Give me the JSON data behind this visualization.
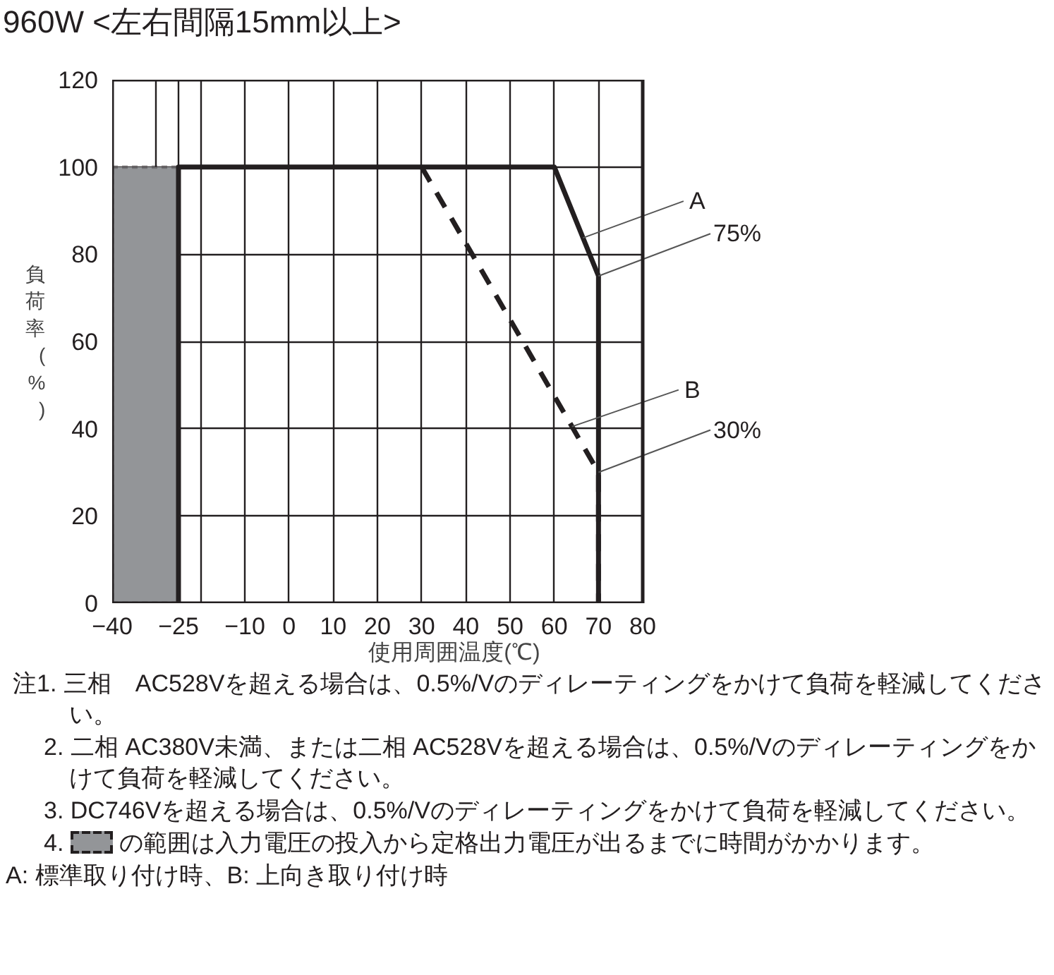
{
  "chart_data": {
    "type": "line",
    "title": "960W <左右間隔15mm以上>",
    "xlabel": "使用周囲温度(℃)",
    "ylabel": "負荷率(%)",
    "xlim": [
      -40,
      80
    ],
    "xticks": [
      -40,
      {
        "value": -30,
        "label": null
      },
      -25,
      {
        "value": -20,
        "label": null
      },
      -10,
      0,
      10,
      20,
      30,
      40,
      50,
      60,
      70,
      80
    ],
    "ylim": [
      0,
      120
    ],
    "yticks": [
      0,
      20,
      40,
      60,
      80,
      100,
      120
    ],
    "grid": true,
    "legend": "bottom",
    "series": [
      {
        "name": "A",
        "color": "#231f20",
        "line_style": "solid",
        "x": [
          -25,
          -25,
          60,
          70,
          70
        ],
        "values": [
          0,
          100,
          100,
          75,
          0
        ]
      },
      {
        "name": "B",
        "color": "#231f20",
        "line_style": "dashed",
        "x": [
          30,
          70,
          70
        ],
        "values": [
          100,
          30,
          0
        ]
      }
    ],
    "bands": [
      {
        "axis": "x",
        "from": -40,
        "to": -25,
        "color": "#939598",
        "label": "の範囲は入力電圧の投入から定格出力電圧が出るまでに時間がかかります。"
      }
    ],
    "annotations": [
      {
        "text": "75%",
        "x": 70,
        "y": 75
      },
      {
        "text": "30%",
        "x": 70,
        "y": 30
      },
      "注1. 三相　AC528Vを超える場合は、0.5%/Vのディレーティングをかけて負荷を軽減してください。",
      "2. 二相 AC380V未満、または二相 AC528Vを超える場合は、0.5%/Vのディレーティングをかけて負荷を軽減してください。",
      "3. DC746Vを超える場合は、0.5%/Vのディレーティングをかけて負荷を軽減してください。",
      "4.",
      "A: 標準取り付け時、B: 上向き取り付け時"
    ]
  }
}
